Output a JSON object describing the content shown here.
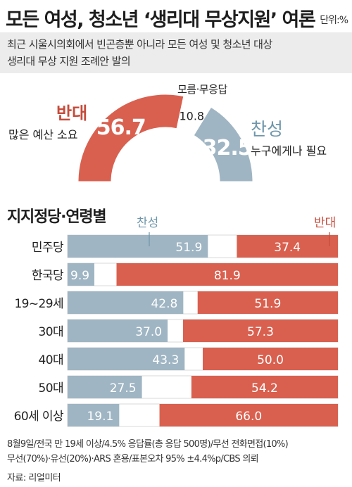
{
  "header": {
    "title": "모든 여성, 청소년 ‘생리대 무상지원’ 여론",
    "unit": "단위:%"
  },
  "subtitle": {
    "line1": "최근 시울시의회에서 빈곤층뿐 아니라 모든 여성 및 청소년 대상",
    "line2": "생리대 무상 지원 조례안 발의"
  },
  "gauge": {
    "oppose_label": "반대",
    "oppose_note": "많은 예산 소요",
    "dontknow_label": "모름·무응답",
    "support_label": "찬성",
    "support_note": "누구에게나 필요",
    "oppose_value_text": "56.7",
    "dontknow_value_text": "10.8",
    "support_value_text": "32.5"
  },
  "section": {
    "title": "지지정당·연령별",
    "support_legend": "찬성",
    "oppose_legend": "반대"
  },
  "colors": {
    "support": "#9fb5c3",
    "oppose": "#d9604f",
    "blank": "#ffffff",
    "accent_red": "#c64b3b",
    "accent_blue": "#6f97ab"
  },
  "chart_data": [
    {
      "type": "pie",
      "labels": [
        "반대",
        "모름·무응답",
        "찬성"
      ],
      "values": [
        56.7,
        10.8,
        32.5
      ]
    },
    {
      "type": "bar",
      "categories": [
        "민주당",
        "한국당",
        "19~29세",
        "30대",
        "40대",
        "50대",
        "60세 이상"
      ],
      "series": [
        {
          "name": "찬성",
          "values": [
            51.9,
            9.9,
            42.8,
            37.0,
            43.3,
            27.5,
            19.1
          ],
          "labels": [
            "51.9",
            "9.9",
            "42.8",
            "37.0",
            "43.3",
            "27.5",
            "19.1"
          ]
        },
        {
          "name": "반대",
          "values": [
            37.4,
            81.9,
            51.9,
            57.3,
            50.0,
            54.2,
            66.0
          ],
          "labels": [
            "37.4",
            "81.9",
            "51.9",
            "57.3",
            "50.0",
            "54.2",
            "66.0"
          ]
        }
      ]
    }
  ],
  "footnote": {
    "line1": "8월9일/전국 만 19세 이상/4.5% 응답률(총 응답 500명)/무선 전화면접(10%)",
    "line2": "무선(70%)·유선(20%)·ARS 혼용/표본오차 95% ±4.4%p/CBS 의뢰",
    "source": "자료: 리얼미터"
  }
}
